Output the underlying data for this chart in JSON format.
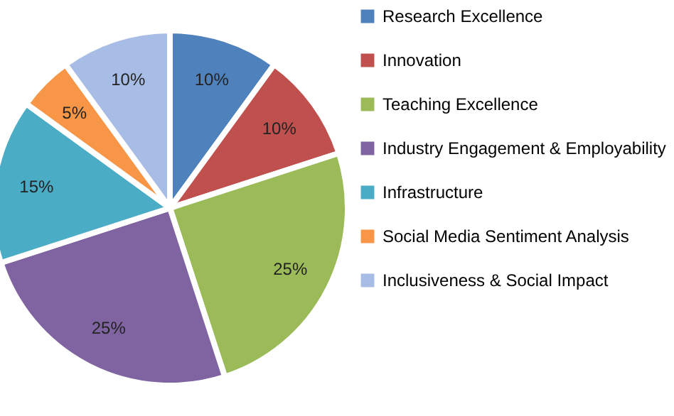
{
  "chart_data": {
    "type": "pie",
    "categories": [
      "Research Excellence",
      "Innovation",
      "Teaching Excellence",
      "Industry Engagement & Employability",
      "Infrastructure",
      "Social Media Sentiment Analysis",
      "Inclusiveness & Social Impact"
    ],
    "values": [
      10,
      10,
      25,
      25,
      15,
      5,
      10
    ],
    "value_labels": [
      "10%",
      "10%",
      "25%",
      "25%",
      "15%",
      "5%",
      "10%"
    ],
    "colors": [
      "#4f81bd",
      "#c0504d",
      "#9bbb59",
      "#8064a2",
      "#4bacc6",
      "#f79646",
      "#a7bde6"
    ],
    "legend": "right"
  }
}
